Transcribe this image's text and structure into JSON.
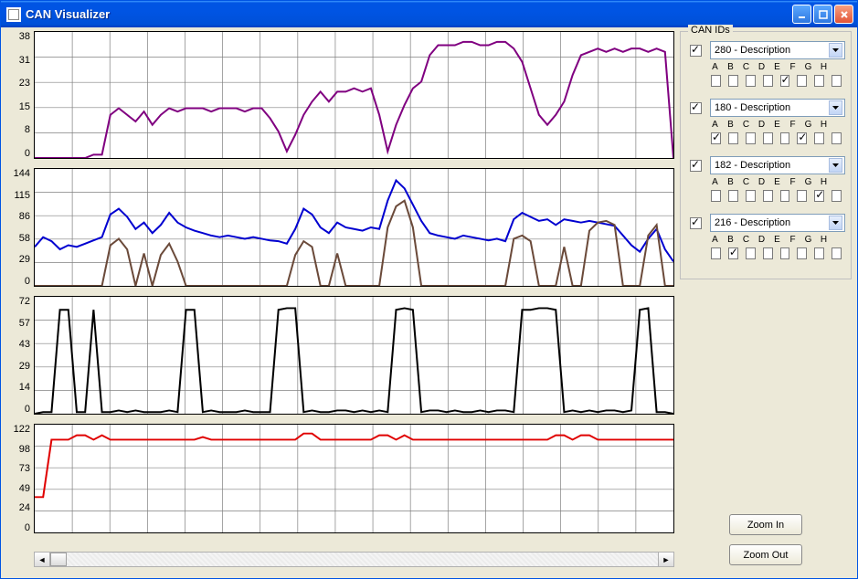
{
  "window": {
    "title": "CAN Visualizer",
    "background": "#ece9d8",
    "titlebar_color": "#0054e3"
  },
  "charts": [
    {
      "id": "chart-280",
      "height": 140,
      "ylim": [
        0,
        38
      ],
      "yticks": [
        38,
        31,
        23,
        15,
        8,
        0
      ],
      "grid_color": "#808080",
      "grid_cols": 17,
      "grid_rows": 5,
      "series": [
        {
          "color": "#800080",
          "width": 2,
          "data": [
            0,
            0,
            0,
            0,
            0,
            0,
            0,
            1,
            1,
            13,
            15,
            13,
            11,
            14,
            10,
            13,
            15,
            14,
            15,
            15,
            15,
            14,
            15,
            15,
            15,
            14,
            15,
            15,
            12,
            8,
            2,
            7,
            13,
            17,
            20,
            17,
            20,
            20,
            21,
            20,
            21,
            13,
            2,
            10,
            16,
            21,
            23,
            31,
            34,
            34,
            34,
            35,
            35,
            34,
            34,
            35,
            35,
            33,
            29,
            21,
            13,
            10,
            13,
            17,
            25,
            31,
            32,
            33,
            32,
            33,
            32,
            33,
            33,
            32,
            33,
            32,
            0
          ]
        }
      ]
    },
    {
      "id": "chart-180",
      "height": 130,
      "ylim": [
        0,
        144
      ],
      "yticks": [
        144,
        115,
        86,
        58,
        29,
        0
      ],
      "grid_color": "#808080",
      "grid_cols": 17,
      "grid_rows": 5,
      "series": [
        {
          "color": "#0000d0",
          "width": 2,
          "data": [
            48,
            60,
            55,
            45,
            50,
            48,
            52,
            56,
            60,
            88,
            95,
            85,
            70,
            78,
            65,
            75,
            90,
            78,
            72,
            68,
            65,
            62,
            60,
            62,
            60,
            58,
            60,
            58,
            56,
            55,
            52,
            70,
            95,
            88,
            72,
            65,
            78,
            72,
            70,
            68,
            72,
            70,
            105,
            130,
            120,
            100,
            80,
            65,
            62,
            60,
            58,
            62,
            60,
            58,
            56,
            58,
            55,
            82,
            90,
            85,
            80,
            82,
            75,
            82,
            80,
            78,
            80,
            78,
            76,
            74,
            62,
            50,
            42,
            58,
            70,
            45,
            30
          ]
        },
        {
          "color": "#6b4a3a",
          "width": 2,
          "data": [
            0,
            0,
            0,
            0,
            0,
            0,
            0,
            0,
            0,
            50,
            58,
            45,
            0,
            40,
            0,
            38,
            52,
            30,
            0,
            0,
            0,
            0,
            0,
            0,
            0,
            0,
            0,
            0,
            0,
            0,
            0,
            38,
            55,
            48,
            0,
            0,
            40,
            0,
            0,
            0,
            0,
            0,
            72,
            98,
            105,
            72,
            0,
            0,
            0,
            0,
            0,
            0,
            0,
            0,
            0,
            0,
            0,
            58,
            62,
            55,
            0,
            0,
            0,
            48,
            0,
            0,
            68,
            78,
            80,
            75,
            0,
            0,
            0,
            62,
            75,
            0,
            0
          ]
        }
      ]
    },
    {
      "id": "chart-182",
      "height": 130,
      "ylim": [
        0,
        72
      ],
      "yticks": [
        72,
        57,
        43,
        29,
        14,
        0
      ],
      "grid_color": "#808080",
      "grid_cols": 17,
      "grid_rows": 5,
      "series": [
        {
          "color": "#000000",
          "width": 2,
          "data": [
            0,
            1,
            1,
            64,
            64,
            1,
            1,
            64,
            1,
            1,
            2,
            1,
            2,
            1,
            1,
            1,
            2,
            1,
            64,
            64,
            1,
            2,
            1,
            1,
            1,
            2,
            1,
            1,
            1,
            64,
            65,
            65,
            1,
            2,
            1,
            1,
            2,
            2,
            1,
            2,
            1,
            2,
            1,
            64,
            65,
            64,
            1,
            2,
            2,
            1,
            2,
            1,
            1,
            2,
            1,
            2,
            2,
            1,
            64,
            64,
            65,
            65,
            64,
            1,
            2,
            1,
            2,
            1,
            2,
            2,
            1,
            2,
            64,
            65,
            1,
            1,
            0
          ]
        }
      ]
    },
    {
      "id": "chart-216",
      "height": 120,
      "ylim": [
        0,
        122
      ],
      "yticks": [
        122,
        98,
        73,
        49,
        24,
        0
      ],
      "grid_color": "#808080",
      "grid_cols": 17,
      "grid_rows": 5,
      "series": [
        {
          "color": "#e00000",
          "width": 2,
          "data": [
            40,
            40,
            105,
            105,
            105,
            110,
            110,
            105,
            110,
            105,
            105,
            105,
            105,
            105,
            105,
            105,
            105,
            105,
            105,
            105,
            108,
            105,
            105,
            105,
            105,
            105,
            105,
            105,
            105,
            105,
            105,
            105,
            112,
            112,
            105,
            105,
            105,
            105,
            105,
            105,
            105,
            110,
            110,
            105,
            110,
            105,
            105,
            105,
            105,
            105,
            105,
            105,
            105,
            105,
            105,
            105,
            105,
            105,
            105,
            105,
            105,
            105,
            110,
            110,
            105,
            110,
            110,
            105,
            105,
            105,
            105,
            105,
            105,
            105,
            105,
            105,
            105
          ]
        }
      ]
    }
  ],
  "sidebar": {
    "group_label": "CAN IDs",
    "letters": [
      "A",
      "B",
      "C",
      "D",
      "E",
      "F",
      "G",
      "H"
    ],
    "ids": [
      {
        "enabled": true,
        "label": "280 - Description",
        "channels": [
          false,
          false,
          false,
          false,
          true,
          false,
          false,
          false
        ]
      },
      {
        "enabled": true,
        "label": "180 - Description",
        "channels": [
          true,
          false,
          false,
          false,
          false,
          true,
          false,
          false
        ]
      },
      {
        "enabled": true,
        "label": "182 - Description",
        "channels": [
          false,
          false,
          false,
          false,
          false,
          false,
          true,
          false
        ]
      },
      {
        "enabled": true,
        "label": "216 - Description",
        "channels": [
          false,
          true,
          false,
          false,
          false,
          false,
          false,
          false
        ]
      }
    ]
  },
  "buttons": {
    "zoom_in": "Zoom In",
    "zoom_out": "Zoom Out"
  }
}
